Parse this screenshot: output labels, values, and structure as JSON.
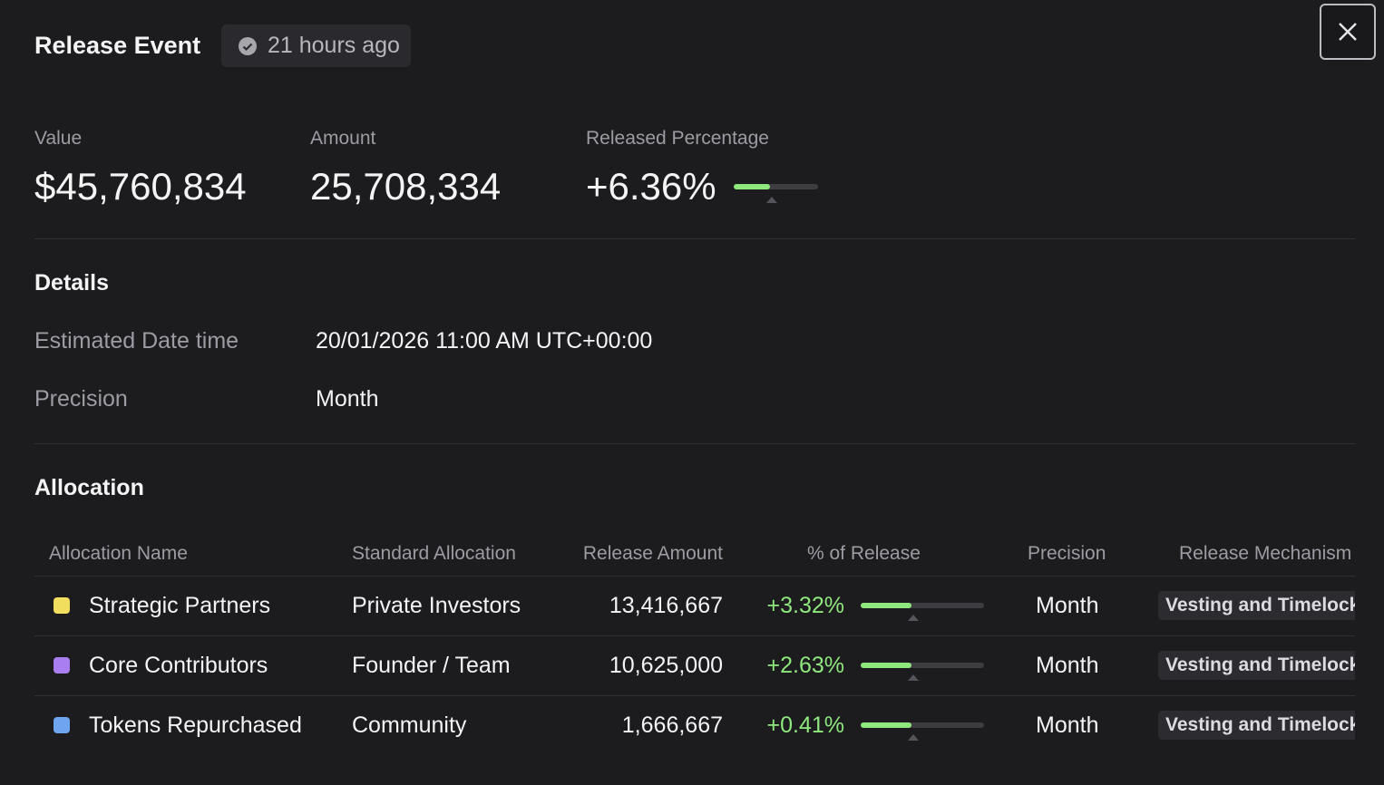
{
  "header": {
    "title": "Release Event",
    "badge": "21 hours ago"
  },
  "stats": [
    {
      "label": "Value",
      "value": "$45,760,834"
    },
    {
      "label": "Amount",
      "value": "25,708,334"
    },
    {
      "label": "Released Percentage",
      "value": "+6.36%"
    }
  ],
  "details": {
    "title": "Details",
    "rows": [
      [
        "Estimated Date time",
        "20/01/2026 11:00 AM UTC+00:00"
      ],
      [
        "Precision",
        "Month"
      ]
    ]
  },
  "allocation": {
    "title": "Allocation",
    "columns": [
      "Allocation Name",
      "Standard Allocation",
      "Release Amount",
      "% of Release",
      "Precision",
      "Release Mechanism"
    ],
    "rows": [
      {
        "color": "#f1de5e",
        "name": "Strategic Partners",
        "standard": "Private Investors",
        "amount": "13,416,667",
        "percent": "+3.32%",
        "precision": "Month",
        "mechanism": "Vesting and Timelock"
      },
      {
        "color": "#a87ef0",
        "name": "Core Contributors",
        "standard": "Founder / Team",
        "amount": "10,625,000",
        "percent": "+2.63%",
        "precision": "Month",
        "mechanism": "Vesting and Timelock"
      },
      {
        "color": "#6fa4f0",
        "name": "Tokens Repurchased",
        "standard": "Community",
        "amount": "1,666,667",
        "percent": "+0.41%",
        "precision": "Month",
        "mechanism": "Vesting and Timelock"
      }
    ]
  }
}
